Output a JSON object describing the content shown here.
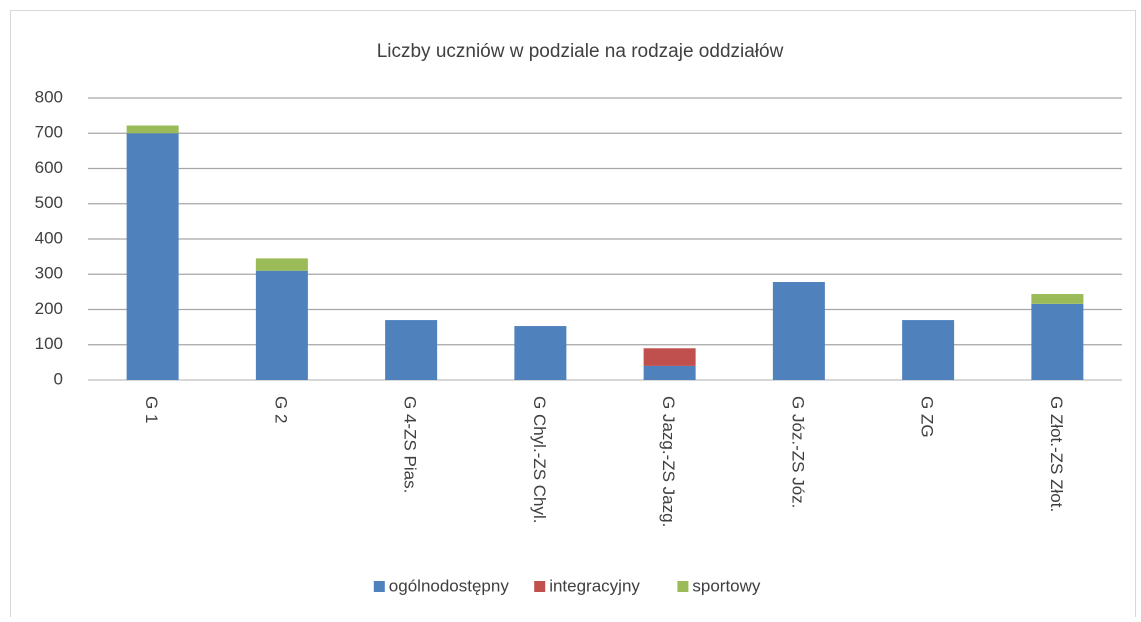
{
  "chart_data": {
    "type": "stacked_bar",
    "title": "Liczby uczniów w podziale na rodzaje oddziałów",
    "categories": [
      "G 1",
      "G 2",
      "G 4-ZS Pias.",
      "G Chyl.-ZS Chyl.",
      "G Jazg.-ZS Jazg.",
      "G Józ.-ZS Józ.",
      "G ZG",
      "G Złot.-ZS Złot."
    ],
    "series": [
      {
        "name": "ogólnodostępny",
        "color": "#4f81bd",
        "values": [
          700,
          310,
          170,
          153,
          40,
          278,
          170,
          216
        ]
      },
      {
        "name": "integracyjny",
        "color": "#c0504d",
        "values": [
          0,
          0,
          0,
          0,
          50,
          0,
          0,
          0
        ]
      },
      {
        "name": "sportowy",
        "color": "#9bbb59",
        "values": [
          22,
          35,
          0,
          0,
          0,
          0,
          0,
          28
        ]
      }
    ],
    "ylim": [
      0,
      800
    ],
    "yticks": [
      0,
      100,
      200,
      300,
      400,
      500,
      600,
      700,
      800
    ],
    "grid": true,
    "legend": "bottom"
  }
}
